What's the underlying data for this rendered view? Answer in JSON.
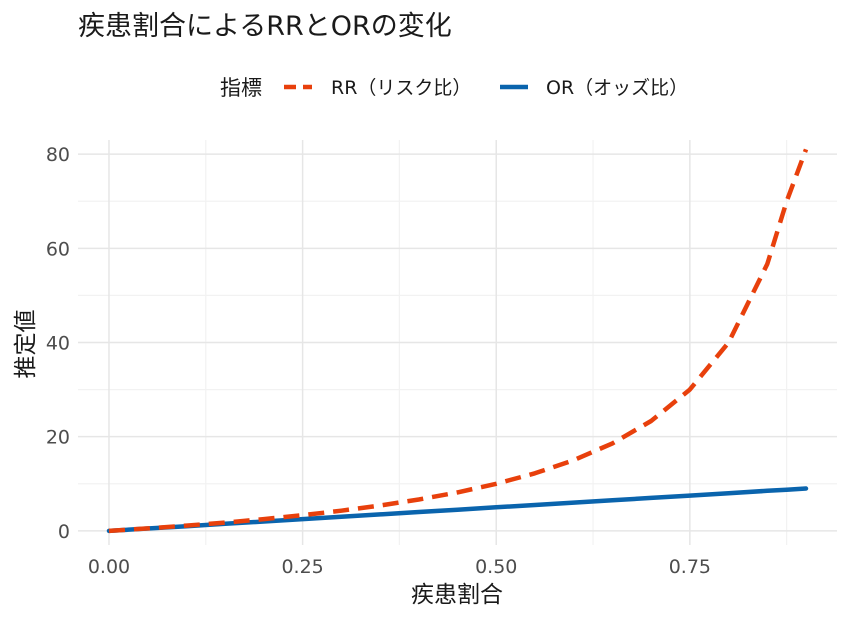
{
  "chart_data": {
    "type": "line",
    "title": "疾患割合によるRRとORの変化",
    "xlabel": "疾患割合",
    "ylabel": "推定値",
    "xlim": [
      -0.04,
      0.94
    ],
    "ylim": [
      -3,
      83
    ],
    "x_ticks": [
      0.0,
      0.25,
      0.5,
      0.75
    ],
    "x_tick_labels": [
      "0.00",
      "0.25",
      "0.50",
      "0.75"
    ],
    "y_ticks": [
      0,
      20,
      40,
      60,
      80
    ],
    "y_tick_labels": [
      "0",
      "20",
      "40",
      "60",
      "80"
    ],
    "grid": true,
    "legend": {
      "title": "指標",
      "position": "top"
    },
    "x": [
      0.0,
      0.05,
      0.1,
      0.15,
      0.2,
      0.25,
      0.3,
      0.35,
      0.4,
      0.45,
      0.5,
      0.55,
      0.6,
      0.65,
      0.7,
      0.75,
      0.8,
      0.85,
      0.875,
      0.9
    ],
    "series": [
      {
        "name": "RR（リスク比）",
        "color": "#e8400c",
        "dash": true,
        "values": [
          0.0,
          0.53,
          1.11,
          1.76,
          2.5,
          3.33,
          4.29,
          5.38,
          6.67,
          8.18,
          10.0,
          12.22,
          15.0,
          18.57,
          23.33,
          30.0,
          40.0,
          56.67,
          70.0,
          81.0
        ]
      },
      {
        "name": "OR（オッズ比）",
        "color": "#0a64ad",
        "dash": false,
        "values": [
          0.0,
          0.5,
          1.0,
          1.5,
          2.0,
          2.5,
          3.0,
          3.5,
          4.0,
          4.5,
          5.0,
          5.5,
          6.0,
          6.5,
          7.0,
          7.5,
          8.0,
          8.5,
          8.75,
          9.0
        ]
      }
    ]
  }
}
